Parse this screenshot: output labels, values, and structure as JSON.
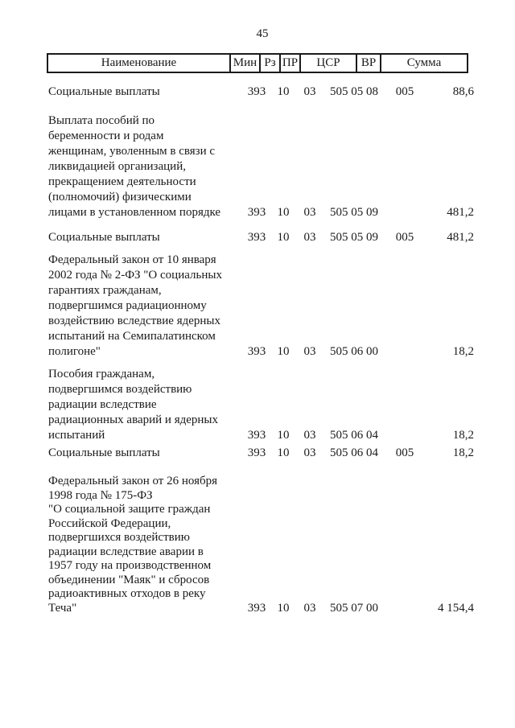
{
  "page": {
    "number": "45"
  },
  "table": {
    "columns": [
      "Наименование",
      "Мин",
      "Рз",
      "ПР",
      "ЦСР",
      "ВР",
      "Сумма"
    ],
    "rows": [
      {
        "name": "Социальные выплаты",
        "min": "393",
        "rz": "10",
        "pr": "03",
        "csr": "505 05 08",
        "vr": "005",
        "sum": "88,6"
      },
      {
        "name": "Выплата пособий по\nбеременности и родам\nженщинам, уволенным в связи с\nликвидацией организаций,\nпрекращением деятельности\n(полномочий) физическими\nлицами в установленном порядке",
        "min": "393",
        "rz": "10",
        "pr": "03",
        "csr": "505 05 09",
        "vr": "",
        "sum": "481,2"
      },
      {
        "name": "Социальные выплаты",
        "min": "393",
        "rz": "10",
        "pr": "03",
        "csr": "505 05 09",
        "vr": "005",
        "sum": "481,2"
      },
      {
        "name": "Федеральный закон от 10 января\n2002 года № 2-ФЗ \"О социальных\nгарантиях гражданам,\nподвергшимся радиационному\nвоздействию вследствие ядерных\nиспытаний на Семипалатинском\nполигоне\"",
        "min": "393",
        "rz": "10",
        "pr": "03",
        "csr": "505 06 00",
        "vr": "",
        "sum": "18,2"
      },
      {
        "name": "Пособия гражданам,\nподвергшимся воздействию\nрадиации вследствие\nрадиационных аварий и ядерных\nиспытаний",
        "min": "393",
        "rz": "10",
        "pr": "03",
        "csr": "505 06 04",
        "vr": "",
        "sum": "18,2"
      },
      {
        "name": "Социальные выплаты",
        "min": "393",
        "rz": "10",
        "pr": "03",
        "csr": "505 06 04",
        "vr": "005",
        "sum": "18,2"
      },
      {
        "name": "Федеральный закон от 26 ноября\n1998 года № 175-ФЗ\n\"О социальной защите граждан\nРоссийской Федерации,\nподвергшихся воздействию\nрадиации вследствие аварии в\n1957 году на производственном\nобъединении \"Маяк\" и сбросов\nрадиоактивных отходов в реку\nТеча\"",
        "min": "393",
        "rz": "10",
        "pr": "03",
        "csr": "505 07 00",
        "vr": "",
        "sum": "4 154,4"
      }
    ]
  }
}
